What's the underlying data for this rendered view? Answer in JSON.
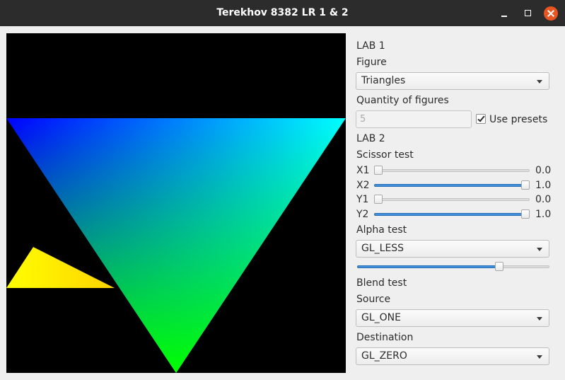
{
  "window": {
    "title": "Terekhov 8382 LR 1 & 2"
  },
  "lab1": {
    "heading": "LAB 1",
    "figure_label": "Figure",
    "figure_value": "Triangles",
    "quantity_label": "Quantity of figures",
    "quantity_value": "5",
    "use_presets_label": "Use presets",
    "use_presets_checked": true
  },
  "lab2": {
    "heading": "LAB 2",
    "scissor_label": "Scissor test",
    "sliders": [
      {
        "label": "X1",
        "value": "0.0",
        "fraction": 0.0
      },
      {
        "label": "X2",
        "value": "1.0",
        "fraction": 1.0
      },
      {
        "label": "Y1",
        "value": "0.0",
        "fraction": 0.0
      },
      {
        "label": "Y2",
        "value": "1.0",
        "fraction": 1.0
      }
    ],
    "alpha_label": "Alpha test",
    "alpha_value": "GL_LESS",
    "alpha_slider_fraction": 0.75,
    "blend_label": "Blend test",
    "source_label": "Source",
    "source_value": "GL_ONE",
    "destination_label": "Destination",
    "destination_value": "GL_ZERO"
  },
  "canvas": {
    "background": "#000000",
    "triangle_colors": [
      "#0000ff",
      "#00ffff",
      "#00ff00"
    ],
    "small_triangle_colors": [
      "#ffff00",
      "#ffd700"
    ]
  }
}
